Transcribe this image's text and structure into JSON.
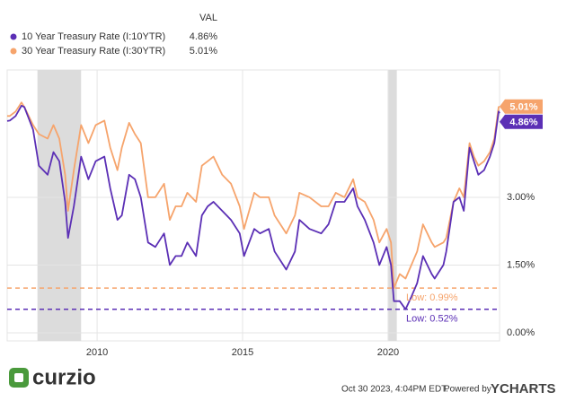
{
  "chart_data": {
    "type": "line",
    "legend_header": "VAL",
    "x": [
      2006.91,
      2007.0,
      2007.2,
      2007.4,
      2007.5,
      2007.8,
      2008.0,
      2008.3,
      2008.5,
      2008.7,
      2008.9,
      2009.0,
      2009.2,
      2009.45,
      2009.7,
      2009.95,
      2010.25,
      2010.45,
      2010.7,
      2010.85,
      2011.1,
      2011.3,
      2011.5,
      2011.75,
      2012.0,
      2012.3,
      2012.5,
      2012.7,
      2012.9,
      2013.1,
      2013.4,
      2013.6,
      2013.8,
      2014.0,
      2014.3,
      2014.6,
      2014.9,
      2015.05,
      2015.4,
      2015.6,
      2015.9,
      2016.1,
      2016.5,
      2016.8,
      2016.95,
      2017.3,
      2017.7,
      2017.95,
      2018.2,
      2018.5,
      2018.8,
      2018.95,
      2019.2,
      2019.5,
      2019.7,
      2019.95,
      2020.1,
      2020.2,
      2020.4,
      2020.6,
      2020.8,
      2021.0,
      2021.2,
      2021.5,
      2021.6,
      2021.9,
      2022.0,
      2022.25,
      2022.45,
      2022.6,
      2022.8,
      2022.95,
      2023.1,
      2023.3,
      2023.5,
      2023.65,
      2023.8,
      2023.83
    ],
    "series": [
      {
        "name": "10 Year Treasury Rate (I:10YTR)",
        "color": "#5b2fb5",
        "values": [
          4.69,
          4.7,
          4.8,
          5.03,
          5.0,
          4.5,
          3.7,
          3.5,
          4.0,
          3.8,
          2.9,
          2.1,
          2.8,
          3.9,
          3.4,
          3.8,
          3.9,
          3.2,
          2.5,
          2.6,
          3.5,
          3.4,
          3.0,
          2.0,
          1.9,
          2.2,
          1.5,
          1.7,
          1.7,
          2.0,
          1.7,
          2.6,
          2.8,
          2.9,
          2.7,
          2.5,
          2.2,
          1.7,
          2.3,
          2.2,
          2.3,
          1.8,
          1.4,
          1.8,
          2.5,
          2.3,
          2.2,
          2.4,
          2.9,
          2.9,
          3.2,
          2.8,
          2.5,
          2.0,
          1.5,
          1.9,
          1.5,
          0.7,
          0.7,
          0.52,
          0.8,
          1.1,
          1.7,
          1.3,
          1.2,
          1.5,
          1.8,
          2.9,
          3.0,
          2.7,
          4.1,
          3.8,
          3.5,
          3.6,
          3.9,
          4.2,
          4.9,
          4.86
        ],
        "latest": {
          "value": 4.86,
          "label": "4.86%"
        },
        "low": {
          "value": 0.52,
          "label": "Low: 0.52%"
        }
      },
      {
        "name": "30 Year Treasury Rate (I:30YTR)",
        "color": "#f6a46c",
        "values": [
          4.8,
          4.8,
          4.9,
          5.1,
          5.0,
          4.6,
          4.4,
          4.3,
          4.6,
          4.3,
          3.5,
          2.7,
          3.6,
          4.6,
          4.2,
          4.6,
          4.7,
          4.1,
          3.6,
          4.1,
          4.65,
          4.4,
          4.2,
          3.0,
          3.0,
          3.3,
          2.5,
          2.8,
          2.8,
          3.1,
          2.9,
          3.7,
          3.8,
          3.9,
          3.5,
          3.3,
          2.8,
          2.3,
          3.1,
          3.0,
          3.0,
          2.6,
          2.2,
          2.6,
          3.1,
          3.0,
          2.8,
          2.8,
          3.1,
          3.0,
          3.4,
          3.0,
          2.9,
          2.5,
          2.0,
          2.3,
          2.0,
          0.99,
          1.3,
          1.2,
          1.5,
          1.8,
          2.4,
          2.0,
          1.9,
          2.0,
          2.1,
          2.9,
          3.2,
          3.0,
          4.2,
          3.9,
          3.7,
          3.8,
          4.0,
          4.3,
          5.0,
          5.01
        ],
        "latest": {
          "value": 5.01,
          "label": "5.01%"
        },
        "low": {
          "value": 0.99,
          "label": "Low: 0.99%"
        }
      }
    ],
    "recessions": [
      [
        2007.95,
        2009.45
      ],
      [
        2020.0,
        2020.3
      ]
    ],
    "xlim": [
      2006.91,
      2023.83
    ],
    "xticks": [
      2010,
      2015,
      2020
    ],
    "ylim": [
      -0.18,
      5.82
    ],
    "yticks": [
      {
        "value": 0,
        "label": "0.00%"
      },
      {
        "value": 1.5,
        "label": "1.50%"
      },
      {
        "value": 3,
        "label": "3.00%"
      }
    ],
    "grid": true
  },
  "footer": {
    "logo": "curzio",
    "timestamp": "Oct 30 2023, 4:04PM EDT.",
    "powered_by": "Powered by",
    "brand": "YCHARTS"
  }
}
